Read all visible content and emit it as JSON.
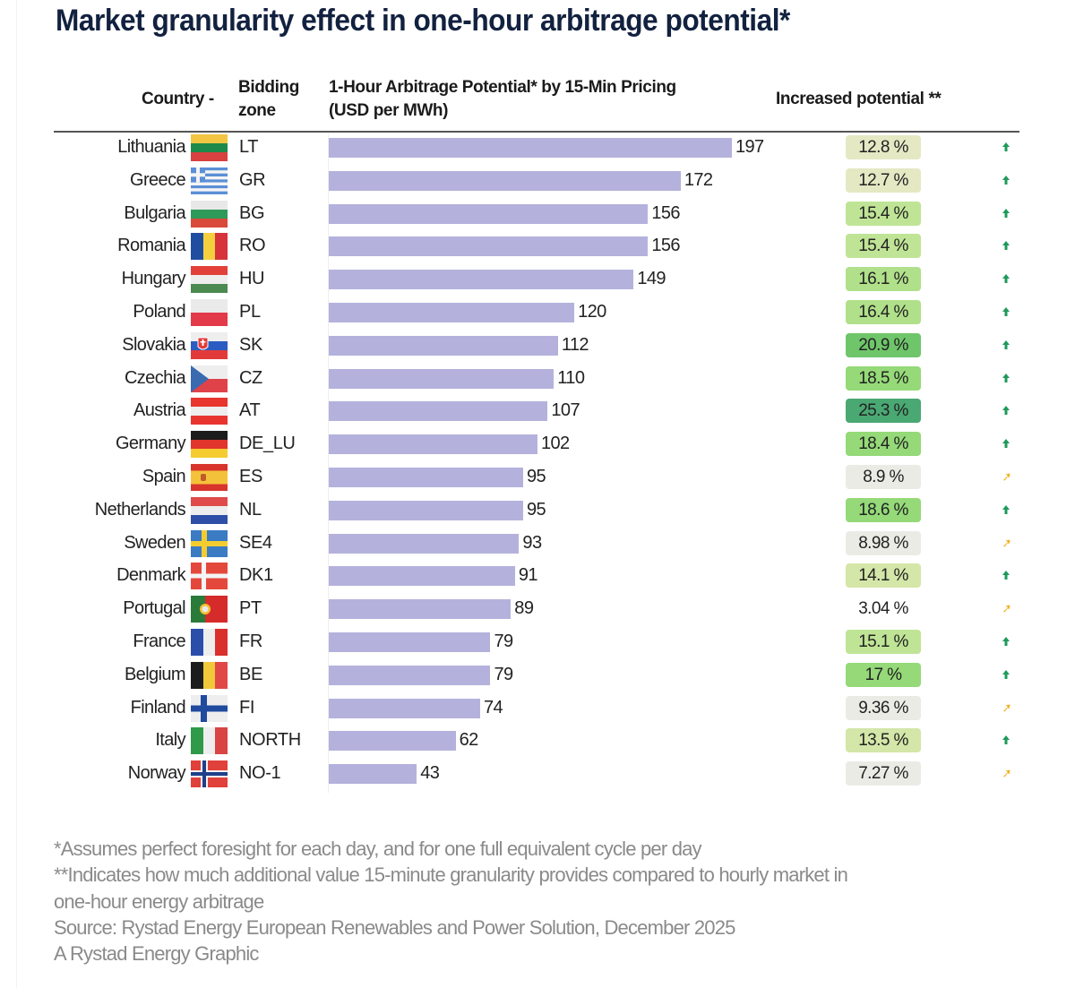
{
  "title": "Market granularity effect in one-hour arbitrage potential*",
  "headers": {
    "country": "Country -",
    "zone_line1": "Bidding",
    "zone_line2": "zone",
    "metric_line1": "1-Hour Arbitrage Potential* by 15-Min Pricing",
    "metric_line2": "(USD per MWh)",
    "increase": "Increased potential **"
  },
  "chart_data": {
    "type": "bar",
    "orientation": "horizontal",
    "title": "Market granularity effect in one-hour arbitrage potential*",
    "xlabel": "1-Hour Arbitrage Potential* by 15-Min Pricing (USD per MWh)",
    "ylabel": "Country - Bidding zone",
    "xlim": [
      0,
      200
    ],
    "grid": false,
    "bar_color": "#b4b2dc",
    "rows": [
      {
        "country": "Lithuania",
        "flag": "lithuania-flag",
        "zone": "LT",
        "value": 197,
        "increase": "12.8 %",
        "increase_value": 12.8,
        "trend": "up"
      },
      {
        "country": "Greece",
        "flag": "greece-flag",
        "zone": "GR",
        "value": 172,
        "increase": "12.7 %",
        "increase_value": 12.7,
        "trend": "up"
      },
      {
        "country": "Bulgaria",
        "flag": "bulgaria-flag",
        "zone": "BG",
        "value": 156,
        "increase": "15.4 %",
        "increase_value": 15.4,
        "trend": "up"
      },
      {
        "country": "Romania",
        "flag": "romania-flag",
        "zone": "RO",
        "value": 156,
        "increase": "15.4 %",
        "increase_value": 15.4,
        "trend": "up"
      },
      {
        "country": "Hungary",
        "flag": "hungary-flag",
        "zone": "HU",
        "value": 149,
        "increase": "16.1 %",
        "increase_value": 16.1,
        "trend": "up"
      },
      {
        "country": "Poland",
        "flag": "poland-flag",
        "zone": "PL",
        "value": 120,
        "increase": "16.4 %",
        "increase_value": 16.4,
        "trend": "up"
      },
      {
        "country": "Slovakia",
        "flag": "slovakia-flag",
        "zone": "SK",
        "value": 112,
        "increase": "20.9 %",
        "increase_value": 20.9,
        "trend": "up"
      },
      {
        "country": "Czechia",
        "flag": "czechia-flag",
        "zone": "CZ",
        "value": 110,
        "increase": "18.5 %",
        "increase_value": 18.5,
        "trend": "up"
      },
      {
        "country": "Austria",
        "flag": "austria-flag",
        "zone": "AT",
        "value": 107,
        "increase": "25.3 %",
        "increase_value": 25.3,
        "trend": "up"
      },
      {
        "country": "Germany",
        "flag": "germany-flag",
        "zone": "DE_LU",
        "value": 102,
        "increase": "18.4 %",
        "increase_value": 18.4,
        "trend": "up"
      },
      {
        "country": "Spain",
        "flag": "spain-flag",
        "zone": "ES",
        "value": 95,
        "increase": "8.9 %",
        "increase_value": 8.9,
        "trend": "up-right"
      },
      {
        "country": "Netherlands",
        "flag": "netherlands-flag",
        "zone": "NL",
        "value": 95,
        "increase": "18.6 %",
        "increase_value": 18.6,
        "trend": "up"
      },
      {
        "country": "Sweden",
        "flag": "sweden-flag",
        "zone": "SE4",
        "value": 93,
        "increase": "8.98 %",
        "increase_value": 8.98,
        "trend": "up-right"
      },
      {
        "country": "Denmark",
        "flag": "denmark-flag",
        "zone": "DK1",
        "value": 91,
        "increase": "14.1 %",
        "increase_value": 14.1,
        "trend": "up"
      },
      {
        "country": "Portugal",
        "flag": "portugal-flag",
        "zone": "PT",
        "value": 89,
        "increase": "3.04 %",
        "increase_value": 3.04,
        "trend": "up-right"
      },
      {
        "country": "France",
        "flag": "france-flag",
        "zone": "FR",
        "value": 79,
        "increase": "15.1 %",
        "increase_value": 15.1,
        "trend": "up"
      },
      {
        "country": "Belgium",
        "flag": "belgium-flag",
        "zone": "BE",
        "value": 79,
        "increase": "17 %",
        "increase_value": 17,
        "trend": "up"
      },
      {
        "country": "Finland",
        "flag": "finland-flag",
        "zone": "FI",
        "value": 74,
        "increase": "9.36 %",
        "increase_value": 9.36,
        "trend": "up-right"
      },
      {
        "country": "Italy",
        "flag": "italy-flag",
        "zone": "NORTH",
        "value": 62,
        "increase": "13.5 %",
        "increase_value": 13.5,
        "trend": "up"
      },
      {
        "country": "Norway",
        "flag": "norway-flag",
        "zone": "NO-1",
        "value": 43,
        "increase": "7.27 %",
        "increase_value": 7.27,
        "trend": "up-right"
      }
    ],
    "trend_colors": {
      "up": "#1e9a5a",
      "up-right": "#f2b01e"
    }
  },
  "footnotes": [
    "*Assumes perfect foresight for each day, and for one full equivalent cycle per day",
    "**Indicates how much additional value 15-minute granularity provides compared to hourly market in",
    "one-hour energy arbitrage",
    "Source: Rystad Energy European Renewables and Power Solution, December 2025",
    "A Rystad Energy Graphic"
  ]
}
